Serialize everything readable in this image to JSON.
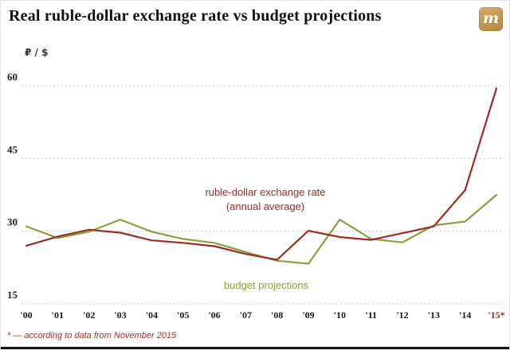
{
  "header": {
    "title": "Real ruble-dollar exchange rate vs budget projections",
    "logo_letter": "m"
  },
  "chart_data": {
    "type": "line",
    "title": "Real ruble-dollar exchange rate vs budget projections",
    "unit_label": "₽ / $",
    "x": [
      "'00",
      "'01",
      "'02",
      "'03",
      "'04",
      "'05",
      "'06",
      "'07",
      "'08",
      "'09",
      "'10",
      "'11",
      "'12",
      "'13",
      "'14",
      "'15*"
    ],
    "series": [
      {
        "name": "ruble-dollar exchange rate (annual average)",
        "color": "#9e2b24",
        "values": [
          27,
          28.9,
          30.3,
          29.7,
          28.1,
          27.6,
          26.9,
          25.3,
          24.1,
          30.1,
          28.8,
          28.2,
          29.6,
          31,
          38.5,
          59.5
        ]
      },
      {
        "name": "budget projections",
        "color": "#8f9e3d",
        "values": [
          31,
          28.6,
          29.9,
          32.4,
          29.9,
          28.4,
          27.6,
          25.7,
          23.9,
          23.3,
          32.4,
          28.4,
          27.7,
          31.2,
          32,
          37.5
        ]
      }
    ],
    "ylim": [
      15,
      60
    ],
    "yticks": [
      15,
      30,
      45,
      60
    ],
    "grid": "dotted horizontal",
    "legend_position": "annotations inside plot",
    "annotations": [
      {
        "text_lines": [
          "ruble-dollar exchange rate",
          "(annual average)"
        ],
        "color": "#9e2b24"
      },
      {
        "text_lines": [
          "budget projections"
        ],
        "color": "#8f9e3d"
      }
    ],
    "last_x_label_color": "#9e2b24"
  },
  "footnote": "* — according to data from November 2015"
}
